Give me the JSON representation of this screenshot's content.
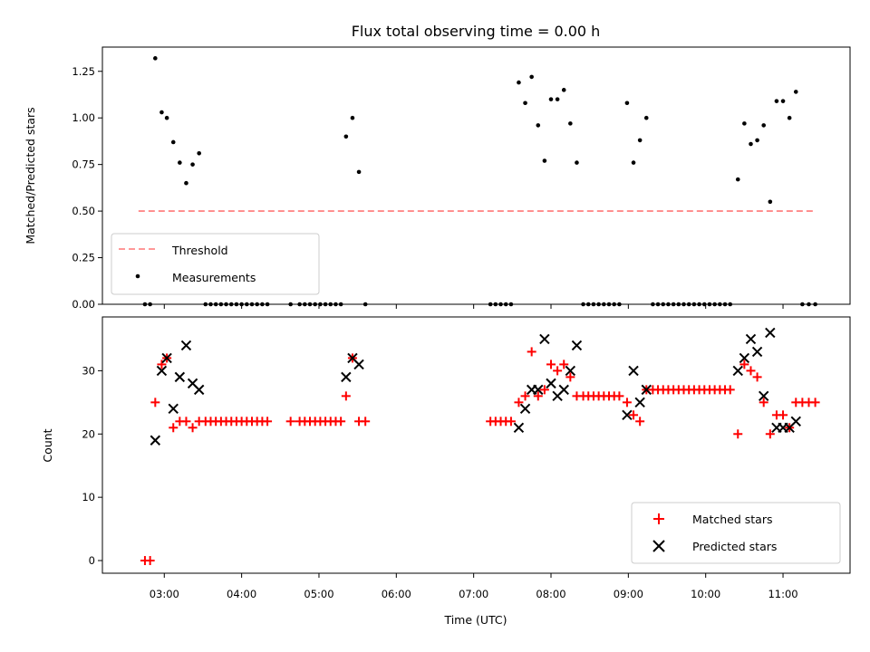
{
  "chart_data": [
    {
      "type": "scatter",
      "title": "Flux total observing time = 0.00 h",
      "xlabel": "",
      "ylabel": "Matched/Predicted stars",
      "ylim": [
        0,
        1.38
      ],
      "xlim": [
        "02:12",
        "11:52"
      ],
      "yticks": [
        "0.00",
        "0.25",
        "0.50",
        "0.75",
        "1.00",
        "1.25"
      ],
      "threshold": {
        "name": "Threshold",
        "value": 0.5,
        "x_range": [
          "02:40",
          "11:25"
        ],
        "color": "#ff7777"
      },
      "series": [
        {
          "name": "Measurements",
          "color": "#000000",
          "points": [
            [
              "02:45",
              0
            ],
            [
              "02:49",
              0
            ],
            [
              "02:53",
              1.32
            ],
            [
              "02:58",
              1.03
            ],
            [
              "03:02",
              1.0
            ],
            [
              "03:07",
              0.87
            ],
            [
              "03:12",
              0.76
            ],
            [
              "03:17",
              0.65
            ],
            [
              "03:22",
              0.75
            ],
            [
              "03:27",
              0.81
            ],
            [
              "03:32",
              0
            ],
            [
              "03:36",
              0
            ],
            [
              "03:40",
              0
            ],
            [
              "03:44",
              0
            ],
            [
              "03:48",
              0
            ],
            [
              "03:52",
              0
            ],
            [
              "03:56",
              0
            ],
            [
              "04:00",
              0
            ],
            [
              "04:04",
              0
            ],
            [
              "04:08",
              0
            ],
            [
              "04:12",
              0
            ],
            [
              "04:16",
              0
            ],
            [
              "04:20",
              0
            ],
            [
              "04:38",
              0
            ],
            [
              "04:45",
              0
            ],
            [
              "04:49",
              0
            ],
            [
              "04:53",
              0
            ],
            [
              "04:57",
              0
            ],
            [
              "05:01",
              0
            ],
            [
              "05:05",
              0
            ],
            [
              "05:09",
              0
            ],
            [
              "05:13",
              0
            ],
            [
              "05:17",
              0
            ],
            [
              "05:21",
              0.9
            ],
            [
              "05:26",
              1.0
            ],
            [
              "05:31",
              0.71
            ],
            [
              "05:36",
              0
            ],
            [
              "07:13",
              0
            ],
            [
              "07:17",
              0
            ],
            [
              "07:21",
              0
            ],
            [
              "07:25",
              0
            ],
            [
              "07:29",
              0
            ],
            [
              "07:35",
              1.19
            ],
            [
              "07:40",
              1.08
            ],
            [
              "07:45",
              1.22
            ],
            [
              "07:50",
              0.96
            ],
            [
              "07:55",
              0.77
            ],
            [
              "08:00",
              1.1
            ],
            [
              "08:05",
              1.1
            ],
            [
              "08:10",
              1.15
            ],
            [
              "08:15",
              0.97
            ],
            [
              "08:20",
              0.76
            ],
            [
              "08:25",
              0
            ],
            [
              "08:29",
              0
            ],
            [
              "08:33",
              0
            ],
            [
              "08:37",
              0
            ],
            [
              "08:41",
              0
            ],
            [
              "08:45",
              0
            ],
            [
              "08:49",
              0
            ],
            [
              "08:53",
              0
            ],
            [
              "08:59",
              1.08
            ],
            [
              "09:04",
              0.76
            ],
            [
              "09:09",
              0.88
            ],
            [
              "09:14",
              1.0
            ],
            [
              "09:19",
              0
            ],
            [
              "09:23",
              0
            ],
            [
              "09:27",
              0
            ],
            [
              "09:31",
              0
            ],
            [
              "09:35",
              0
            ],
            [
              "09:39",
              0
            ],
            [
              "09:43",
              0
            ],
            [
              "09:47",
              0
            ],
            [
              "09:51",
              0
            ],
            [
              "09:55",
              0
            ],
            [
              "09:59",
              0
            ],
            [
              "10:03",
              0
            ],
            [
              "10:07",
              0
            ],
            [
              "10:11",
              0
            ],
            [
              "10:15",
              0
            ],
            [
              "10:19",
              0
            ],
            [
              "10:25",
              0.67
            ],
            [
              "10:30",
              0.97
            ],
            [
              "10:35",
              0.86
            ],
            [
              "10:40",
              0.88
            ],
            [
              "10:45",
              0.96
            ],
            [
              "10:50",
              0.55
            ],
            [
              "10:55",
              1.09
            ],
            [
              "11:00",
              1.09
            ],
            [
              "11:05",
              1.0
            ],
            [
              "11:10",
              1.14
            ],
            [
              "11:15",
              0
            ],
            [
              "11:20",
              0
            ],
            [
              "11:25",
              0
            ]
          ]
        }
      ],
      "legend": [
        "Threshold",
        "Measurements"
      ],
      "legend_position": "lower-left"
    },
    {
      "type": "scatter",
      "title": "",
      "xlabel": "Time (UTC)",
      "ylabel": "Count",
      "ylim": [
        -2,
        38.5
      ],
      "xlim": [
        "02:12",
        "11:52"
      ],
      "xticks": [
        "03:00",
        "04:00",
        "05:00",
        "06:00",
        "07:00",
        "08:00",
        "09:00",
        "10:00",
        "11:00"
      ],
      "yticks": [
        "0",
        "10",
        "20",
        "30"
      ],
      "series": [
        {
          "name": "Matched stars",
          "marker": "plus",
          "color": "#ff0000",
          "points": [
            [
              "02:45",
              0
            ],
            [
              "02:49",
              0
            ],
            [
              "02:53",
              25
            ],
            [
              "02:58",
              31
            ],
            [
              "03:02",
              32
            ],
            [
              "03:07",
              21
            ],
            [
              "03:12",
              22
            ],
            [
              "03:17",
              22
            ],
            [
              "03:22",
              21
            ],
            [
              "03:27",
              22
            ],
            [
              "03:32",
              22
            ],
            [
              "03:36",
              22
            ],
            [
              "03:40",
              22
            ],
            [
              "03:44",
              22
            ],
            [
              "03:48",
              22
            ],
            [
              "03:52",
              22
            ],
            [
              "03:56",
              22
            ],
            [
              "04:00",
              22
            ],
            [
              "04:04",
              22
            ],
            [
              "04:08",
              22
            ],
            [
              "04:12",
              22
            ],
            [
              "04:16",
              22
            ],
            [
              "04:20",
              22
            ],
            [
              "04:38",
              22
            ],
            [
              "04:45",
              22
            ],
            [
              "04:49",
              22
            ],
            [
              "04:53",
              22
            ],
            [
              "04:57",
              22
            ],
            [
              "05:01",
              22
            ],
            [
              "05:05",
              22
            ],
            [
              "05:09",
              22
            ],
            [
              "05:13",
              22
            ],
            [
              "05:17",
              22
            ],
            [
              "05:21",
              26
            ],
            [
              "05:26",
              32
            ],
            [
              "05:31",
              22
            ],
            [
              "05:36",
              22
            ],
            [
              "07:13",
              22
            ],
            [
              "07:17",
              22
            ],
            [
              "07:21",
              22
            ],
            [
              "07:25",
              22
            ],
            [
              "07:29",
              22
            ],
            [
              "07:35",
              25
            ],
            [
              "07:40",
              26
            ],
            [
              "07:45",
              33
            ],
            [
              "07:50",
              26
            ],
            [
              "07:55",
              27
            ],
            [
              "08:00",
              31
            ],
            [
              "08:05",
              30
            ],
            [
              "08:10",
              31
            ],
            [
              "08:15",
              29
            ],
            [
              "08:20",
              26
            ],
            [
              "08:25",
              26
            ],
            [
              "08:29",
              26
            ],
            [
              "08:33",
              26
            ],
            [
              "08:37",
              26
            ],
            [
              "08:41",
              26
            ],
            [
              "08:45",
              26
            ],
            [
              "08:49",
              26
            ],
            [
              "08:53",
              26
            ],
            [
              "08:59",
              25
            ],
            [
              "09:04",
              23
            ],
            [
              "09:09",
              22
            ],
            [
              "09:14",
              27
            ],
            [
              "09:19",
              27
            ],
            [
              "09:23",
              27
            ],
            [
              "09:27",
              27
            ],
            [
              "09:31",
              27
            ],
            [
              "09:35",
              27
            ],
            [
              "09:39",
              27
            ],
            [
              "09:43",
              27
            ],
            [
              "09:47",
              27
            ],
            [
              "09:51",
              27
            ],
            [
              "09:55",
              27
            ],
            [
              "09:59",
              27
            ],
            [
              "10:03",
              27
            ],
            [
              "10:07",
              27
            ],
            [
              "10:11",
              27
            ],
            [
              "10:15",
              27
            ],
            [
              "10:19",
              27
            ],
            [
              "10:25",
              20
            ],
            [
              "10:30",
              31
            ],
            [
              "10:35",
              30
            ],
            [
              "10:40",
              29
            ],
            [
              "10:45",
              25
            ],
            [
              "10:50",
              20
            ],
            [
              "10:55",
              23
            ],
            [
              "11:00",
              23
            ],
            [
              "11:05",
              21
            ],
            [
              "11:10",
              25
            ],
            [
              "11:15",
              25
            ],
            [
              "11:20",
              25
            ],
            [
              "11:25",
              25
            ]
          ]
        },
        {
          "name": "Predicted stars",
          "marker": "x",
          "color": "#000000",
          "points": [
            [
              "02:53",
              19
            ],
            [
              "02:58",
              30
            ],
            [
              "03:02",
              32
            ],
            [
              "03:07",
              24
            ],
            [
              "03:12",
              29
            ],
            [
              "03:17",
              34
            ],
            [
              "03:22",
              28
            ],
            [
              "03:27",
              27
            ],
            [
              "05:21",
              29
            ],
            [
              "05:26",
              32
            ],
            [
              "05:31",
              31
            ],
            [
              "07:35",
              21
            ],
            [
              "07:40",
              24
            ],
            [
              "07:45",
              27
            ],
            [
              "07:50",
              27
            ],
            [
              "07:55",
              35
            ],
            [
              "08:00",
              28
            ],
            [
              "08:05",
              26
            ],
            [
              "08:10",
              27
            ],
            [
              "08:15",
              30
            ],
            [
              "08:20",
              34
            ],
            [
              "08:59",
              23
            ],
            [
              "09:04",
              30
            ],
            [
              "09:09",
              25
            ],
            [
              "09:14",
              27
            ],
            [
              "10:25",
              30
            ],
            [
              "10:30",
              32
            ],
            [
              "10:35",
              35
            ],
            [
              "10:40",
              33
            ],
            [
              "10:45",
              26
            ],
            [
              "10:50",
              36
            ],
            [
              "10:55",
              21
            ],
            [
              "11:00",
              21
            ],
            [
              "11:05",
              21
            ],
            [
              "11:10",
              22
            ]
          ]
        }
      ],
      "legend": [
        "Matched stars",
        "Predicted stars"
      ],
      "legend_position": "lower-right"
    }
  ]
}
